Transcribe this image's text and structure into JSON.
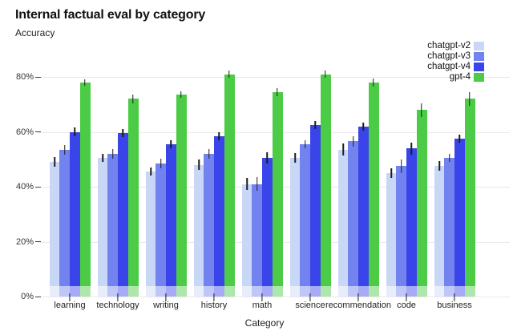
{
  "chart_data": {
    "type": "bar",
    "title": "Internal factual eval by category",
    "ylabel": "Accuracy",
    "xlabel": "Category",
    "categories": [
      "learning",
      "technology",
      "writing",
      "history",
      "math",
      "science",
      "recommendation",
      "code",
      "business"
    ],
    "series": [
      {
        "name": "chatgpt-v2",
        "color": "#c9d7f6",
        "values": [
          49,
          50.5,
          45.5,
          48,
          41,
          50.5,
          53.5,
          45,
          47.5
        ],
        "errors": [
          1.8,
          1.5,
          1.5,
          1.8,
          2.2,
          1.8,
          2.2,
          1.8,
          1.8
        ]
      },
      {
        "name": "chatgpt-v3",
        "color": "#7283f0",
        "values": [
          53.5,
          52,
          48.5,
          52,
          41,
          55.5,
          56.5,
          47.5,
          50.5
        ],
        "errors": [
          1.8,
          1.8,
          1.8,
          1.8,
          2.5,
          1.5,
          1.8,
          2.5,
          1.5
        ]
      },
      {
        "name": "chatgpt-v4",
        "color": "#3945e9",
        "values": [
          60,
          59.5,
          55.5,
          58.5,
          50.5,
          62.5,
          62,
          54,
          57.5
        ],
        "errors": [
          1.5,
          1.5,
          1.5,
          1.5,
          2.0,
          1.5,
          1.5,
          2.2,
          1.5
        ]
      },
      {
        "name": "gpt-4",
        "color": "#4ccb46",
        "values": [
          78,
          72,
          73.5,
          81,
          74.5,
          81,
          78,
          68,
          72
        ],
        "errors": [
          1.2,
          1.5,
          1.2,
          1.2,
          1.5,
          1.2,
          1.5,
          2.5,
          2.5
        ]
      }
    ],
    "yticks": [
      0,
      20,
      40,
      60,
      80
    ],
    "ytick_labels": [
      "0%",
      "20%",
      "40%",
      "60%",
      "80%"
    ],
    "ylim": [
      0,
      88
    ],
    "grid": true,
    "error_bars": true,
    "legend_position": "top-right",
    "colors": {
      "background": "#ffffff",
      "gridline": "#e9e9e9",
      "axis_text": "#333333",
      "error_bar": "#1c1c1c"
    }
  }
}
